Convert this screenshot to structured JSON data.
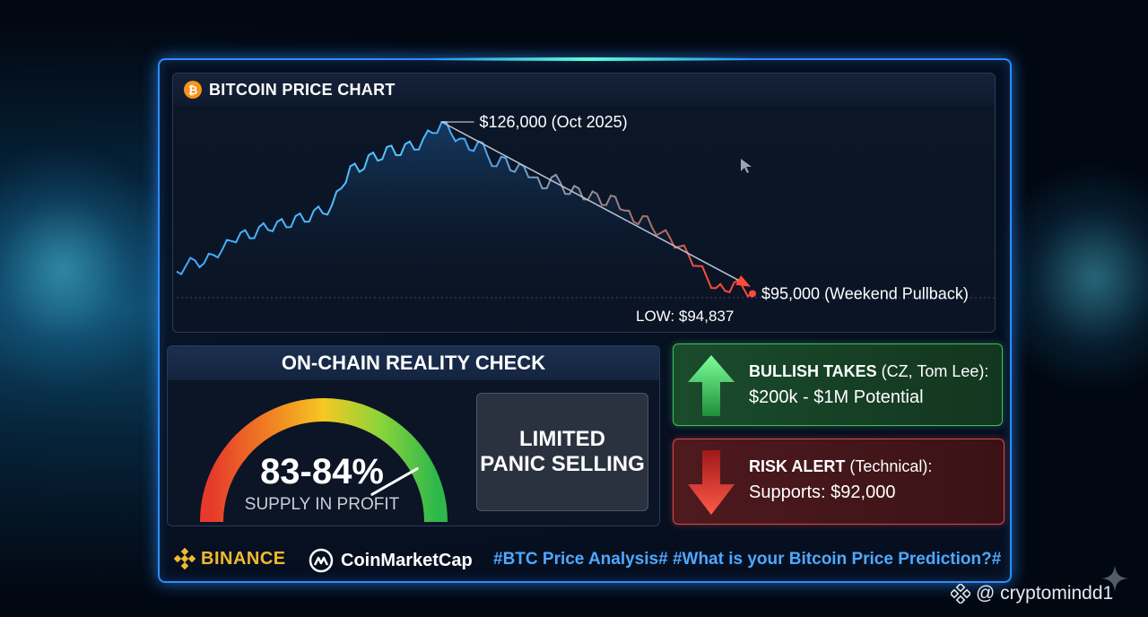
{
  "chart": {
    "title": "BITCOIN PRICE CHART",
    "btc_symbol": "₿",
    "peak_label": "$126,000 (Oct 2025)",
    "current_label": "$95,000 (Weekend Pullback)",
    "low_label": "LOW: $94,837"
  },
  "chart_data": {
    "type": "line",
    "title": "BITCOIN PRICE CHART",
    "series": [
      {
        "values": [
          99.0,
          100.0,
          101.0,
          100.5,
          102.0,
          103.0,
          104.5,
          106.0,
          105.0,
          107.0,
          106.5,
          108.0,
          107.0,
          109.0,
          108.0,
          110.0,
          109.5,
          111.0,
          114.0,
          118.0,
          117.0,
          120.0,
          119.0,
          121.5,
          120.0,
          122.0,
          121.0,
          123.0,
          124.0,
          126.0,
          124.0,
          123.0,
          121.0,
          122.5,
          120.0,
          118.0,
          119.5,
          117.0,
          118.0,
          116.0,
          114.0,
          116.0,
          115.0,
          113.0,
          114.0,
          112.0,
          113.0,
          111.0,
          112.5,
          110.0,
          108.0,
          109.0,
          107.0,
          106.0,
          105.0,
          103.5,
          102.0,
          100.0,
          98.0,
          96.0,
          95.5,
          97.0,
          96.0,
          95.0
        ]
      }
    ],
    "annotations": [
      {
        "text": "$126,000 (Oct 2025)",
        "y": 126000
      },
      {
        "text": "$95,000 (Weekend Pullback)",
        "y": 95000
      },
      {
        "text": "LOW: $94,837",
        "y": 94837
      }
    ],
    "trendline": {
      "from": 126000,
      "to": 95000
    },
    "colors": {
      "up": "#3ea8ff",
      "mid": "#8d98a8",
      "down": "#ff4a3a",
      "peak": "#3fe08a"
    },
    "grid": false
  },
  "onchain": {
    "title": "ON-CHAIN REALITY CHECK",
    "value": "83-84%",
    "label": "SUPPLY IN PROFIT",
    "gauge_level": 0.835,
    "panic_line1": "LIMITED",
    "panic_line2": "PANIC SELLING"
  },
  "bullish": {
    "title_strong": "BULLISH TAKES",
    "title_rest": " (CZ, Tom Lee):",
    "detail": "$200k - $1M Potential",
    "color": "#3fbf5f"
  },
  "risk": {
    "title_strong": "RISK ALERT",
    "title_rest": " (Technical):",
    "detail": "Supports: $92,000",
    "color": "#d94848"
  },
  "footer": {
    "binance": "BINANCE",
    "cmc": "CoinMarketCap",
    "hashtags": "#BTC Price Analysis# #What is your Bitcoin Price Prediction?#"
  },
  "watermark": {
    "text": "@ cryptomindd1"
  }
}
